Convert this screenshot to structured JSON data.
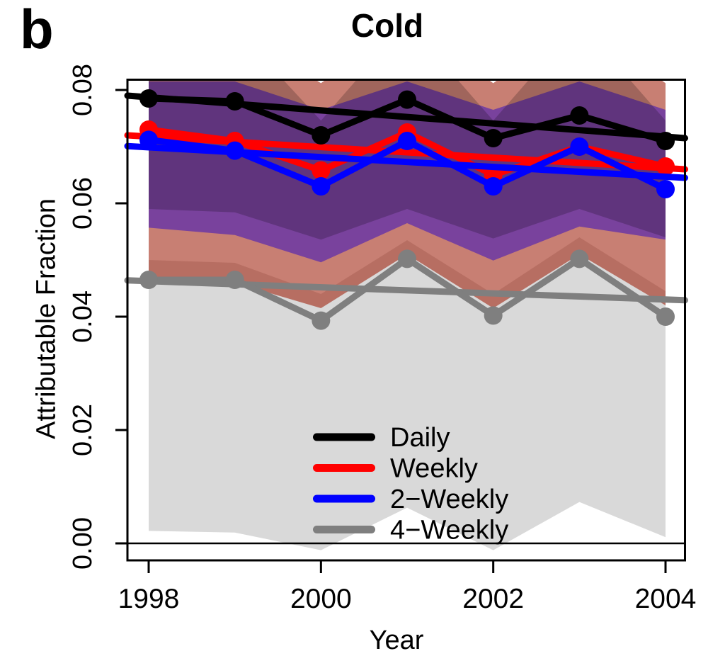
{
  "panel_label": "b",
  "title": "Cold",
  "x_axis": {
    "label": "Year",
    "tick_labels": [
      "1998",
      "2000",
      "2002",
      "2004"
    ],
    "tick_values": [
      1998,
      2000,
      2002,
      2004
    ]
  },
  "y_axis": {
    "label": "Attributable Fraction",
    "tick_labels": [
      "0.00",
      "0.02",
      "0.04",
      "0.06",
      "0.08"
    ],
    "tick_values": [
      0,
      0.02,
      0.04,
      0.06,
      0.08
    ]
  },
  "legend": {
    "items": [
      {
        "label": "Daily",
        "color": "#000000"
      },
      {
        "label": "Weekly",
        "color": "#ff0000"
      },
      {
        "label": "2−Weekly",
        "color": "#0000ff"
      },
      {
        "label": "4−Weekly",
        "color": "#7f7f7f"
      }
    ]
  },
  "chart_data": {
    "type": "line",
    "title": "Cold",
    "xlabel": "Year",
    "ylabel": "Attributable Fraction",
    "x": [
      1998,
      1999,
      2000,
      2001,
      2002,
      2003,
      2004
    ],
    "xlim": [
      1997.75,
      2004.23
    ],
    "ylim": [
      -0.003,
      0.0819
    ],
    "zero_line": 0,
    "grid": false,
    "legend_position": "bottom-center-inside",
    "series": [
      {
        "name": "4-weekly",
        "label": "4−Weekly",
        "color": "#7f7f7f",
        "values": [
          0.0465,
          0.0465,
          0.0393,
          0.0502,
          0.0402,
          0.0502,
          0.04
        ],
        "trend": [
          0.0464,
          0.0429
        ],
        "band": {
          "color": "#808080",
          "opacity": 0.3,
          "upper": [
            0.05,
            0.0495,
            0.044,
            0.0535,
            0.044,
            0.054,
            0.0445
          ],
          "lower": [
            0.0022,
            0.0019,
            -0.0012,
            0.0063,
            -0.0012,
            0.0073,
            0.0011
          ]
        }
      },
      {
        "name": "weekly",
        "label": "Weekly",
        "color": "#ff0000",
        "values": [
          0.073,
          0.071,
          0.0658,
          0.0725,
          0.065,
          0.07,
          0.0665
        ],
        "trend": [
          0.072,
          0.066
        ],
        "band": {
          "color": "#9b1500",
          "opacity": 0.55,
          "upper": [
            0.095,
            0.091,
            0.0812,
            0.092,
            0.0812,
            0.092,
            0.0812
          ],
          "lower": [
            0.0465,
            0.046,
            0.0415,
            0.051,
            0.0415,
            0.051,
            0.042
          ]
        }
      },
      {
        "name": "2-weekly",
        "label": "2−Weekly",
        "color": "#0000ff",
        "values": [
          0.0712,
          0.0693,
          0.063,
          0.071,
          0.063,
          0.07,
          0.0625
        ],
        "trend": [
          0.0701,
          0.0645
        ],
        "band": {
          "color": "#2a06c8",
          "opacity": 0.5,
          "upper": [
            0.0815,
            0.0815,
            0.0765,
            0.0815,
            0.0765,
            0.0815,
            0.0765
          ],
          "lower": [
            0.0557,
            0.0544,
            0.0496,
            0.0565,
            0.0499,
            0.0559,
            0.0536
          ]
        }
      },
      {
        "name": "daily",
        "label": "Daily",
        "color": "#000000",
        "values": [
          0.0785,
          0.078,
          0.072,
          0.0783,
          0.0715,
          0.0755,
          0.071
        ],
        "trend": [
          0.079,
          0.0715
        ],
        "band": {
          "color": "#000000",
          "opacity": 0.2,
          "upper": [
            0.095,
            0.091,
            0.0746,
            0.092,
            0.0746,
            0.092,
            0.0746
          ],
          "lower": [
            0.059,
            0.0584,
            0.0536,
            0.059,
            0.0538,
            0.059,
            0.054
          ]
        }
      }
    ]
  }
}
